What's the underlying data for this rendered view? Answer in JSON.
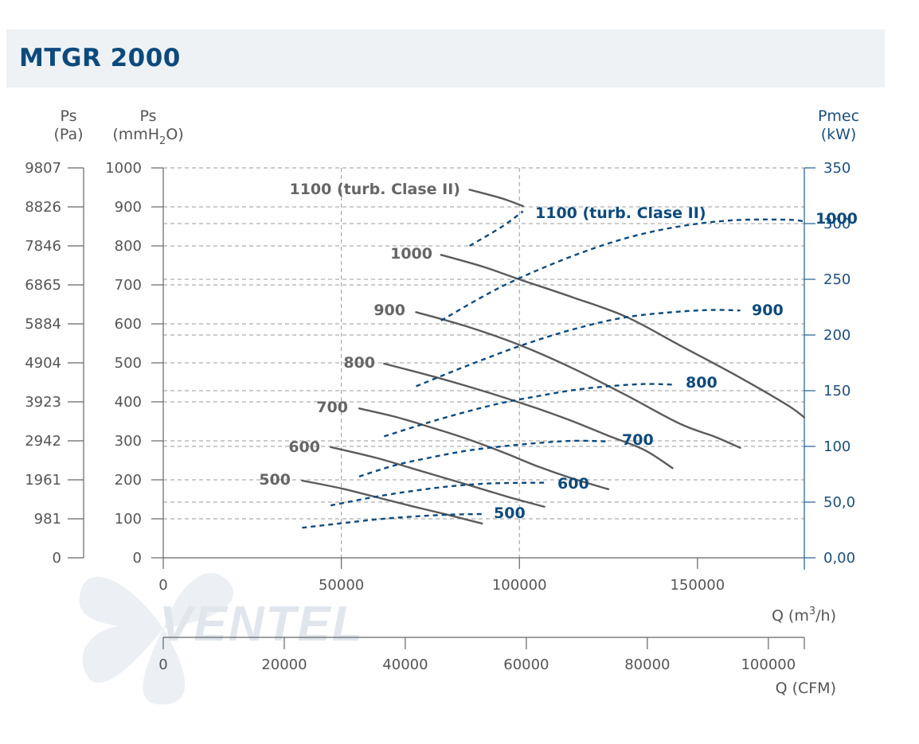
{
  "header": {
    "title": "MTGR 2000"
  },
  "watermark": {
    "text": "VENTEL",
    "color": "#dfe6ec"
  },
  "colors": {
    "pressure": "#5b5b5b",
    "power": "#0d4a7c",
    "axis_right": "#1d5f8f",
    "grid": "#9a9a9a"
  },
  "chart_data": {
    "type": "line",
    "axes": {
      "ps_pa": {
        "label": "Ps",
        "unit": "(Pa)",
        "ticks": [
          "9807",
          "8826",
          "7846",
          "6865",
          "5884",
          "4904",
          "3923",
          "2942",
          "1961",
          "981",
          "0"
        ]
      },
      "ps_mmh2o": {
        "label": "Ps",
        "unit_prefix": "(mmH",
        "unit_sub": "2",
        "unit_suffix": "O)",
        "range": [
          0,
          1000
        ],
        "ticks": [
          "1000",
          "900",
          "800",
          "700",
          "600",
          "500",
          "400",
          "300",
          "200",
          "100",
          "0"
        ]
      },
      "pmec": {
        "label": "Pmec",
        "unit": "(kW)",
        "range": [
          0,
          350
        ],
        "ticks": [
          "350",
          "300",
          "250",
          "200",
          "150",
          "100",
          "50,0",
          "0,00"
        ]
      },
      "q_m3h": {
        "label_prefix": "Q (m",
        "label_sup": "3",
        "label_suffix": "/h)",
        "range": [
          0,
          180000
        ],
        "ticks": [
          "0",
          "50000",
          "100000",
          "150000"
        ]
      },
      "q_cfm": {
        "label": "Q (CFM)",
        "range": [
          0,
          105945
        ],
        "ticks": [
          "0",
          "20000",
          "40000",
          "60000",
          "80000",
          "100000"
        ]
      }
    },
    "pressure_series": [
      {
        "name": "500",
        "points": [
          [
            39000,
            198
          ],
          [
            50000,
            178
          ],
          [
            60000,
            155
          ],
          [
            70000,
            132
          ],
          [
            80000,
            110
          ],
          [
            89500,
            88
          ]
        ]
      },
      {
        "name": "600",
        "points": [
          [
            47000,
            284
          ],
          [
            60000,
            256
          ],
          [
            70000,
            229
          ],
          [
            80000,
            202
          ],
          [
            90000,
            175
          ],
          [
            98000,
            153
          ],
          [
            107000,
            131
          ]
        ]
      },
      {
        "name": "700",
        "points": [
          [
            55000,
            383
          ],
          [
            65000,
            362
          ],
          [
            75000,
            335
          ],
          [
            85000,
            306
          ],
          [
            95000,
            272
          ],
          [
            105000,
            235
          ],
          [
            115000,
            203
          ],
          [
            125000,
            176
          ]
        ]
      },
      {
        "name": "800",
        "points": [
          [
            62000,
            498
          ],
          [
            75000,
            467
          ],
          [
            85000,
            441
          ],
          [
            95000,
            413
          ],
          [
            105000,
            383
          ],
          [
            115000,
            350
          ],
          [
            125000,
            313
          ],
          [
            135000,
            277
          ],
          [
            143000,
            230
          ]
        ]
      },
      {
        "name": "900",
        "points": [
          [
            71000,
            630
          ],
          [
            85000,
            594
          ],
          [
            100000,
            546
          ],
          [
            115000,
            486
          ],
          [
            130000,
            417
          ],
          [
            145000,
            344
          ],
          [
            155000,
            310
          ],
          [
            162000,
            282
          ]
        ]
      },
      {
        "name": "1000",
        "points": [
          [
            78000,
            777
          ],
          [
            90000,
            746
          ],
          [
            100000,
            714
          ],
          [
            115000,
            668
          ],
          [
            130000,
            618
          ],
          [
            145000,
            545
          ],
          [
            160000,
            472
          ],
          [
            175000,
            393
          ],
          [
            180000,
            360
          ]
        ]
      },
      {
        "name": "1100 (turb. Clase II)",
        "points": [
          [
            86000,
            944
          ],
          [
            95000,
            922
          ],
          [
            101000,
            902
          ]
        ]
      }
    ],
    "power_series": [
      {
        "name": "500",
        "points": [
          [
            39000,
            27
          ],
          [
            50000,
            31
          ],
          [
            60000,
            34.5
          ],
          [
            70000,
            37
          ],
          [
            80000,
            38.7
          ],
          [
            89500,
            39.3
          ]
        ]
      },
      {
        "name": "600",
        "points": [
          [
            47000,
            47
          ],
          [
            60000,
            55
          ],
          [
            70000,
            60
          ],
          [
            80000,
            64
          ],
          [
            90000,
            66.5
          ],
          [
            98000,
            67.2
          ],
          [
            107000,
            67.4
          ]
        ]
      },
      {
        "name": "700",
        "points": [
          [
            55000,
            73
          ],
          [
            65000,
            83
          ],
          [
            75000,
            90
          ],
          [
            85000,
            96
          ],
          [
            95000,
            100
          ],
          [
            105000,
            103
          ],
          [
            115000,
            105
          ],
          [
            125000,
            104.5
          ]
        ]
      },
      {
        "name": "800",
        "points": [
          [
            62000,
            109
          ],
          [
            75000,
            122
          ],
          [
            85000,
            131
          ],
          [
            95000,
            139
          ],
          [
            105000,
            145
          ],
          [
            115000,
            150.5
          ],
          [
            125000,
            154
          ],
          [
            135000,
            156
          ],
          [
            143000,
            155.5
          ]
        ]
      },
      {
        "name": "900",
        "points": [
          [
            71000,
            154
          ],
          [
            85000,
            172
          ],
          [
            100000,
            190
          ],
          [
            115000,
            205
          ],
          [
            130000,
            216
          ],
          [
            145000,
            221
          ],
          [
            155000,
            222.5
          ],
          [
            162000,
            222
          ]
        ]
      },
      {
        "name": "1000",
        "points": [
          [
            78000,
            213
          ],
          [
            90000,
            235
          ],
          [
            100000,
            251
          ],
          [
            115000,
            271
          ],
          [
            130000,
            287
          ],
          [
            145000,
            297.5
          ],
          [
            160000,
            303
          ],
          [
            175000,
            303.5
          ],
          [
            180000,
            302
          ]
        ]
      },
      {
        "name": "1100 (turb. Clase II)",
        "points": [
          [
            86000,
            280
          ],
          [
            95000,
            297
          ],
          [
            101000,
            311
          ]
        ]
      }
    ],
    "labels_pressure": [
      "1100 (turb. Clase II)",
      "1000",
      "900",
      "800",
      "700",
      "600",
      "500"
    ],
    "labels_power": [
      "1100 (turb. Clase II)",
      "1000",
      "900",
      "800",
      "700",
      "600",
      "500"
    ]
  }
}
